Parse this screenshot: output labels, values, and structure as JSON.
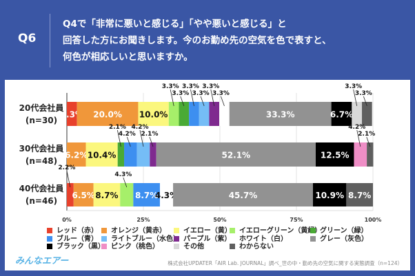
{
  "header": {
    "q_label": "Q6",
    "question": "Q4で「非常に悪いと感じる」「やや悪いと感じる」と\n回答した方にお聞きします。今のお勤め先の空気を色で表すと、\n何色が相応しいと思いますか。"
  },
  "footer": {
    "logo": "みんなエアー",
    "source": "株式会社UPDATER「AIR Lab. JOURNAL」調べ_世の中・勤め先の空気に関する実態調査（n=124）"
  },
  "chart_data": {
    "type": "bar",
    "orientation": "horizontal",
    "stacked": true,
    "percent": true,
    "xlim": [
      0,
      100
    ],
    "x_ticks": [
      "0%",
      "25%",
      "50%",
      "75%",
      "100%"
    ],
    "legend_placement": "bottom",
    "categories": [
      {
        "name": "20代会社員",
        "n": "(n=30)"
      },
      {
        "name": "30代会社員",
        "n": "(n=48)"
      },
      {
        "name": "40代会社員",
        "n": "(n=46)"
      }
    ],
    "series": [
      {
        "name": "レッド（赤）",
        "color": "#e8412c",
        "values": [
          3.3,
          0,
          2.2
        ]
      },
      {
        "name": "オレンジ（黄赤）",
        "color": "#f0973a",
        "values": [
          20.0,
          6.2,
          6.5
        ]
      },
      {
        "name": "イエロー（黄）",
        "color": "#fbf77e",
        "values": [
          10.0,
          10.4,
          8.7
        ]
      },
      {
        "name": "イエローグリーン（黄緑）",
        "color": "#a6ef6a",
        "values": [
          3.3,
          0,
          4.3
        ]
      },
      {
        "name": "グリーン（緑）",
        "color": "#4aaa35",
        "values": [
          3.3,
          2.1,
          0
        ]
      },
      {
        "name": "ブルー（青）",
        "color": "#3d8ff0",
        "values": [
          3.3,
          4.2,
          8.7
        ]
      },
      {
        "name": "ライトブルー（水色）",
        "color": "#75bdf6",
        "values": [
          3.3,
          4.2,
          0
        ]
      },
      {
        "name": "パープル（紫）",
        "color": "#7f2a8f",
        "values": [
          3.3,
          2.1,
          0
        ]
      },
      {
        "name": "ホワイト（白）",
        "color": "#ffffff",
        "values": [
          3.3,
          0,
          4.3
        ]
      },
      {
        "name": "グレー（灰色）",
        "color": "#929292",
        "values": [
          33.3,
          52.1,
          45.7
        ]
      },
      {
        "name": "ブラック（黒）",
        "color": "#000000",
        "values": [
          6.7,
          12.5,
          10.9
        ]
      },
      {
        "name": "ピンク（桃色）",
        "color": "#ef8ec6",
        "values": [
          0,
          4.2,
          0
        ]
      },
      {
        "name": "その他",
        "color": "#d9d9d9",
        "values": [
          3.3,
          0,
          0
        ]
      },
      {
        "name": "わからない",
        "color": "#5f5f5f",
        "values": [
          3.3,
          2.1,
          8.7
        ]
      }
    ]
  }
}
